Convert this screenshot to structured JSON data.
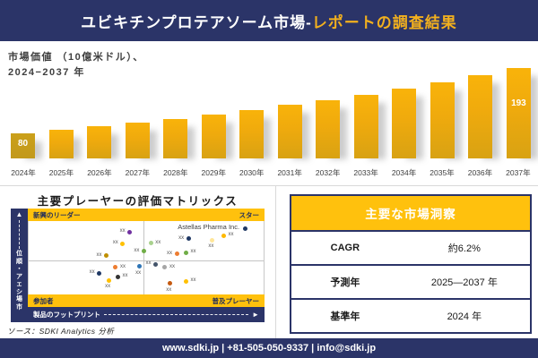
{
  "banner": {
    "title_part1": "ユビキチンプロテアソーム市場-",
    "title_part2": "レポートの調査結果"
  },
  "chart": {
    "label_line1": "市場価値 （10億米ドル）、",
    "label_line2": "2024−2037 年",
    "first_value_label": "80",
    "last_value_label": "193"
  },
  "chart_data": [
    {
      "type": "bar",
      "title": "市場価値（10億米ドル）、2024−2037年",
      "categories": [
        "2024年",
        "2025年",
        "2026年",
        "2027年",
        "2028年",
        "2029年",
        "2030年",
        "2031年",
        "2032年",
        "2033年",
        "2034年",
        "2035年",
        "2036年",
        "2037年"
      ],
      "values": [
        80,
        86,
        92,
        98,
        105,
        112,
        120,
        129,
        138,
        147,
        158,
        169,
        180,
        193
      ],
      "value_labels_shown": {
        "2024年": "80",
        "2037年": "193"
      },
      "ylabel": "市場価値（10億米ドル）",
      "xlabel": "",
      "bar_color": "#EFAA0D",
      "first_bar_color": "#C49B17",
      "grid": false,
      "legend": "none"
    },
    {
      "type": "scatter",
      "title": "主要プレーヤーの評価マトリックス",
      "x_axis": "製品のフットプリント",
      "y_axis": "市場シェア・順位",
      "quadrants": {
        "top_left": "新興のリーダー",
        "top_right": "スター",
        "bottom_left": "参加者",
        "bottom_right": "普及プレーヤー"
      },
      "highlight_company": "Astellas Pharma Inc.",
      "points": [
        {
          "x": 43,
          "y": 15,
          "color": "#7030A0",
          "label": "xx",
          "pos": "left"
        },
        {
          "x": 40,
          "y": 31,
          "color": "#FFC000",
          "label": "xx",
          "pos": "left"
        },
        {
          "x": 49,
          "y": 41,
          "color": "#70AD47",
          "label": "xx",
          "pos": "left"
        },
        {
          "x": 33,
          "y": 47,
          "color": "#BF8F00",
          "label": "xx",
          "pos": "left"
        },
        {
          "x": 37,
          "y": 63,
          "color": "#ED7D31",
          "label": "xx",
          "pos": "right"
        },
        {
          "x": 47,
          "y": 62,
          "color": "#2E75B6",
          "label": "xx",
          "pos": "below"
        },
        {
          "x": 30,
          "y": 71,
          "color": "#1F3864",
          "label": "xx",
          "pos": "left"
        },
        {
          "x": 38,
          "y": 76,
          "color": "#333333",
          "label": "xx",
          "pos": "right"
        },
        {
          "x": 34,
          "y": 81,
          "color": "#FFC000",
          "label": "xx",
          "pos": "below"
        },
        {
          "x": 92,
          "y": 10,
          "color": "#1F3864",
          "label": "Astellas Pharma Inc.",
          "pos": "left",
          "big": true
        },
        {
          "x": 68,
          "y": 24,
          "color": "#1F3864",
          "label": "xx",
          "pos": "left"
        },
        {
          "x": 83,
          "y": 20,
          "color": "#FFB900",
          "label": "xx",
          "pos": "right"
        },
        {
          "x": 78,
          "y": 26,
          "color": "#FFE699",
          "label": "xx",
          "pos": "below"
        },
        {
          "x": 52,
          "y": 30,
          "color": "#A9D18E",
          "label": "xx",
          "pos": "right"
        },
        {
          "x": 63,
          "y": 45,
          "color": "#ED7D31",
          "label": "xx",
          "pos": "left"
        },
        {
          "x": 67,
          "y": 43,
          "color": "#70AD47",
          "label": "xx",
          "pos": "right"
        },
        {
          "x": 54,
          "y": 59,
          "color": "#44546A",
          "label": "xx",
          "pos": "left"
        },
        {
          "x": 58,
          "y": 63,
          "color": "#A6A6A6",
          "label": "xx",
          "pos": "right"
        },
        {
          "x": 60,
          "y": 85,
          "color": "#C55A11",
          "label": "xx",
          "pos": "below"
        },
        {
          "x": 67,
          "y": 82,
          "color": "#FFC000",
          "label": "xx",
          "pos": "right"
        }
      ]
    }
  ],
  "matrix_section": {
    "title": "主要プレーヤーの評価マトリックス"
  },
  "insights": {
    "title": "主要な市場洞察",
    "rows": [
      {
        "label": "CAGR",
        "value": "約6.2%"
      },
      {
        "label": "予測年",
        "value": "2025—2037 年"
      },
      {
        "label": "基準年",
        "value": "2024 年"
      }
    ]
  },
  "source": "ソース：SDKI Analytics 分析",
  "footer": {
    "text": "www.sdki.jp | +81-505-050-9337 | info@sdki.jp"
  },
  "colors": {
    "navy": "#2B3468",
    "gold_band": "#FFC10D",
    "bar_main": "#EFAA0D",
    "bar_first": "#C49B17",
    "title_accent": "#F2B01E"
  }
}
